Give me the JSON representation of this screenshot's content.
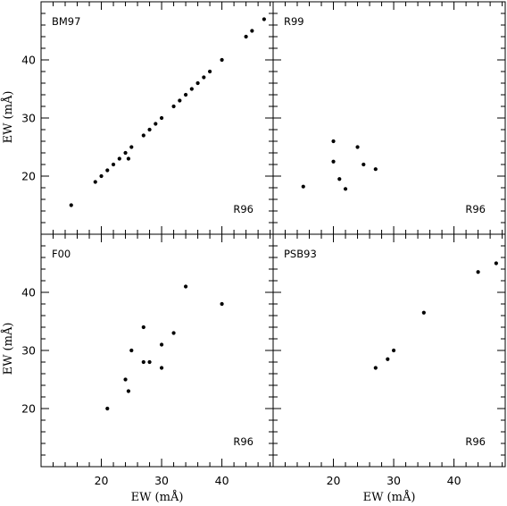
{
  "chart_data": {
    "type": "scatter",
    "layout": "2x2 panels, shared axes",
    "x_label": "EW (mÅ)",
    "y_label": "EW (mÅ)",
    "xlim": [
      10,
      48.5
    ],
    "ylim": [
      10,
      50
    ],
    "x_ticks": [
      20,
      30,
      40
    ],
    "y_ticks": [
      20,
      30,
      40
    ],
    "panels": [
      {
        "id": "BM97",
        "label": "BM97",
        "ref_label": "R96",
        "points": [
          [
            15,
            15
          ],
          [
            19,
            19
          ],
          [
            20,
            20
          ],
          [
            21,
            21
          ],
          [
            22,
            22
          ],
          [
            23,
            23
          ],
          [
            24,
            24
          ],
          [
            24.5,
            23
          ],
          [
            25,
            25
          ],
          [
            27,
            27
          ],
          [
            28,
            28
          ],
          [
            29,
            29
          ],
          [
            30,
            30
          ],
          [
            32,
            32
          ],
          [
            33,
            33
          ],
          [
            34,
            34
          ],
          [
            35,
            35
          ],
          [
            36,
            36
          ],
          [
            37,
            37
          ],
          [
            38,
            38
          ],
          [
            40,
            40
          ],
          [
            44,
            44
          ],
          [
            45,
            45
          ],
          [
            47,
            47
          ]
        ]
      },
      {
        "id": "R99",
        "label": "R99",
        "ref_label": "R96",
        "points": [
          [
            15,
            18.2
          ],
          [
            20,
            26
          ],
          [
            20,
            22.5
          ],
          [
            21,
            19.5
          ],
          [
            22,
            17.8
          ],
          [
            24,
            25
          ],
          [
            25,
            22
          ],
          [
            27,
            21.2
          ]
        ]
      },
      {
        "id": "F00",
        "label": "F00",
        "ref_label": "R96",
        "points": [
          [
            21,
            20
          ],
          [
            24,
            25
          ],
          [
            24.5,
            23
          ],
          [
            25,
            30
          ],
          [
            27,
            34
          ],
          [
            27,
            28
          ],
          [
            28,
            28
          ],
          [
            30,
            31
          ],
          [
            30,
            27
          ],
          [
            32,
            33
          ],
          [
            34,
            41
          ],
          [
            40,
            38
          ]
        ]
      },
      {
        "id": "PSB93",
        "label": "PSB93",
        "ref_label": "R96",
        "points": [
          [
            27,
            27
          ],
          [
            29,
            28.5
          ],
          [
            30,
            30
          ],
          [
            35,
            36.5
          ],
          [
            44,
            43.5
          ],
          [
            47,
            45
          ]
        ]
      }
    ]
  }
}
